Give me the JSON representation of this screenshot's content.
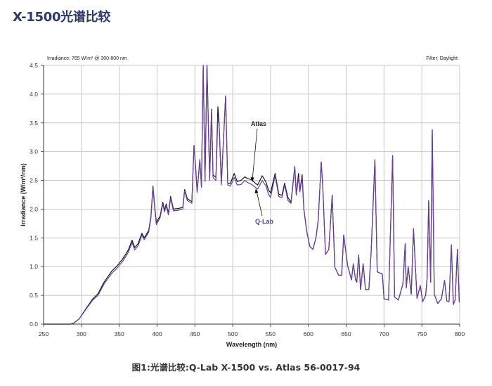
{
  "title": "X-1500光谱比较",
  "caption": "图1:光谱比较:Q-Lab X-1500 vs. Atlas 56-0017-94",
  "chart_data": {
    "type": "line",
    "header_left": "Irradiance: 765 W/m² @ 300-800 nm",
    "header_right": "Filter:  Daylight",
    "xlabel": "Wavelength (nm)",
    "ylabel": "Irradiance (W/m²/nm)",
    "xlim": [
      250,
      800
    ],
    "ylim": [
      0,
      4.5
    ],
    "xticks": [
      250,
      300,
      350,
      400,
      450,
      500,
      550,
      600,
      650,
      700,
      750,
      800
    ],
    "yticks": [
      "0.0",
      "0.5",
      "1.0",
      "1.5",
      "2.0",
      "2.5",
      "3.0",
      "3.5",
      "4.0",
      "4.5"
    ],
    "grid": true,
    "annotations": [
      {
        "text": "Atlas",
        "series": "Atlas",
        "points_to_x": 525
      },
      {
        "text": "Q-Lab",
        "series": "Q-Lab",
        "points_to_x": 530
      }
    ],
    "x": [
      250,
      285,
      290,
      297,
      305,
      315,
      322,
      330,
      340,
      347,
      355,
      362,
      367,
      370.5,
      375,
      380,
      383,
      389,
      392,
      394.6,
      397,
      399,
      404,
      407.6,
      410,
      412,
      415,
      418,
      421.6,
      428,
      434,
      436.5,
      440,
      446,
      448.8,
      451,
      453,
      456.5,
      458.7,
      461,
      463.4,
      466,
      469.5,
      472,
      474,
      477.8,
      480.4,
      482,
      485,
      490.6,
      493.4,
      497,
      502,
      506,
      511,
      516,
      520,
      525,
      530,
      533,
      539,
      544,
      547,
      550,
      556,
      561,
      565,
      568.6,
      573,
      577,
      582,
      584,
      587,
      588.8,
      591.8,
      594,
      598,
      602,
      606,
      610,
      613,
      617,
      619,
      622.6,
      627,
      631.5,
      635,
      640,
      644,
      646.7,
      649,
      652,
      657,
      659.4,
      662.5,
      664,
      666.5,
      669,
      672.4,
      675.5,
      680,
      683,
      688,
      691,
      697.8,
      700,
      706,
      711.4,
      714,
      719,
      725,
      728,
      729.4,
      732,
      736,
      739,
      743.6,
      748,
      751,
      755,
      757,
      759,
      761.6,
      763.8,
      766.5,
      771,
      775.8,
      780,
      783,
      786,
      789,
      791.6,
      794,
      797,
      799.4,
      800
    ],
    "series": [
      {
        "name": "Atlas",
        "color": "#111111",
        "values": [
          0,
          0,
          0.02,
          0.09,
          0.25,
          0.44,
          0.53,
          0.73,
          0.92,
          1.01,
          1.14,
          1.29,
          1.46,
          1.33,
          1.4,
          1.58,
          1.5,
          1.63,
          1.88,
          2.4,
          2.03,
          1.77,
          1.88,
          2.12,
          1.98,
          2.09,
          1.93,
          2.22,
          2.0,
          2.01,
          2.03,
          2.34,
          2.18,
          2.13,
          3.11,
          2.74,
          2.31,
          2.86,
          2.4,
          4.5,
          2.5,
          4.5,
          2.54,
          3.74,
          2.6,
          2.55,
          3.78,
          3.5,
          2.45,
          3.97,
          2.45,
          2.45,
          2.62,
          2.48,
          2.5,
          2.56,
          2.53,
          2.51,
          2.45,
          2.42,
          2.58,
          2.47,
          2.34,
          2.28,
          2.62,
          2.26,
          2.24,
          2.45,
          2.2,
          2.12,
          2.74,
          2.26,
          2.62,
          2.32,
          2.6,
          2.0,
          1.6,
          1.35,
          1.3,
          1.5,
          1.8,
          2.82,
          2.4,
          1.21,
          1.3,
          2.24,
          0.99,
          0.85,
          0.85,
          1.55,
          1.31,
          1.01,
          0.77,
          1.05,
          0.76,
          0.73,
          1.2,
          0.6,
          1.05,
          0.6,
          0.6,
          1.27,
          2.86,
          0.91,
          0.87,
          0.44,
          0.42,
          2.93,
          0.47,
          0.42,
          0.7,
          1.4,
          0.63,
          1.0,
          0.52,
          1.66,
          0.45,
          0.67,
          0.39,
          0.5,
          0.8,
          2.15,
          0.73,
          3.38,
          0.52,
          0.36,
          0.44,
          0.76,
          0.4,
          0.39,
          1.38,
          0.34,
          0.42,
          1.3,
          0.4,
          0.38
        ]
      },
      {
        "name": "Q-Lab",
        "color": "#6a3fa0",
        "values": [
          0,
          0,
          0.02,
          0.09,
          0.24,
          0.42,
          0.5,
          0.7,
          0.88,
          0.97,
          1.1,
          1.25,
          1.42,
          1.29,
          1.36,
          1.55,
          1.47,
          1.6,
          1.85,
          2.38,
          2.0,
          1.73,
          1.85,
          2.09,
          1.95,
          2.06,
          1.9,
          2.19,
          1.97,
          1.98,
          2.0,
          2.32,
          2.15,
          2.1,
          3.11,
          2.72,
          2.29,
          2.85,
          2.38,
          4.5,
          2.48,
          4.5,
          2.5,
          3.72,
          2.55,
          2.5,
          3.6,
          3.48,
          2.42,
          3.97,
          2.42,
          2.4,
          2.55,
          2.42,
          2.43,
          2.5,
          2.46,
          2.43,
          2.38,
          2.35,
          2.5,
          2.4,
          2.27,
          2.2,
          2.58,
          2.22,
          2.2,
          2.42,
          2.15,
          2.1,
          2.72,
          2.24,
          2.55,
          2.3,
          2.55,
          2.0,
          1.6,
          1.35,
          1.3,
          1.5,
          1.8,
          2.82,
          2.4,
          1.21,
          1.3,
          2.21,
          0.99,
          0.85,
          0.85,
          1.55,
          1.31,
          1.01,
          0.77,
          1.05,
          0.76,
          0.73,
          1.2,
          0.6,
          1.05,
          0.6,
          0.6,
          1.27,
          2.86,
          0.91,
          0.87,
          0.44,
          0.42,
          2.93,
          0.47,
          0.42,
          0.7,
          1.4,
          0.63,
          1.0,
          0.52,
          1.66,
          0.45,
          0.67,
          0.39,
          0.5,
          0.8,
          2.15,
          0.73,
          3.37,
          0.52,
          0.36,
          0.44,
          0.76,
          0.4,
          0.39,
          1.38,
          0.34,
          0.42,
          1.27,
          0.4,
          0.38
        ]
      }
    ]
  }
}
